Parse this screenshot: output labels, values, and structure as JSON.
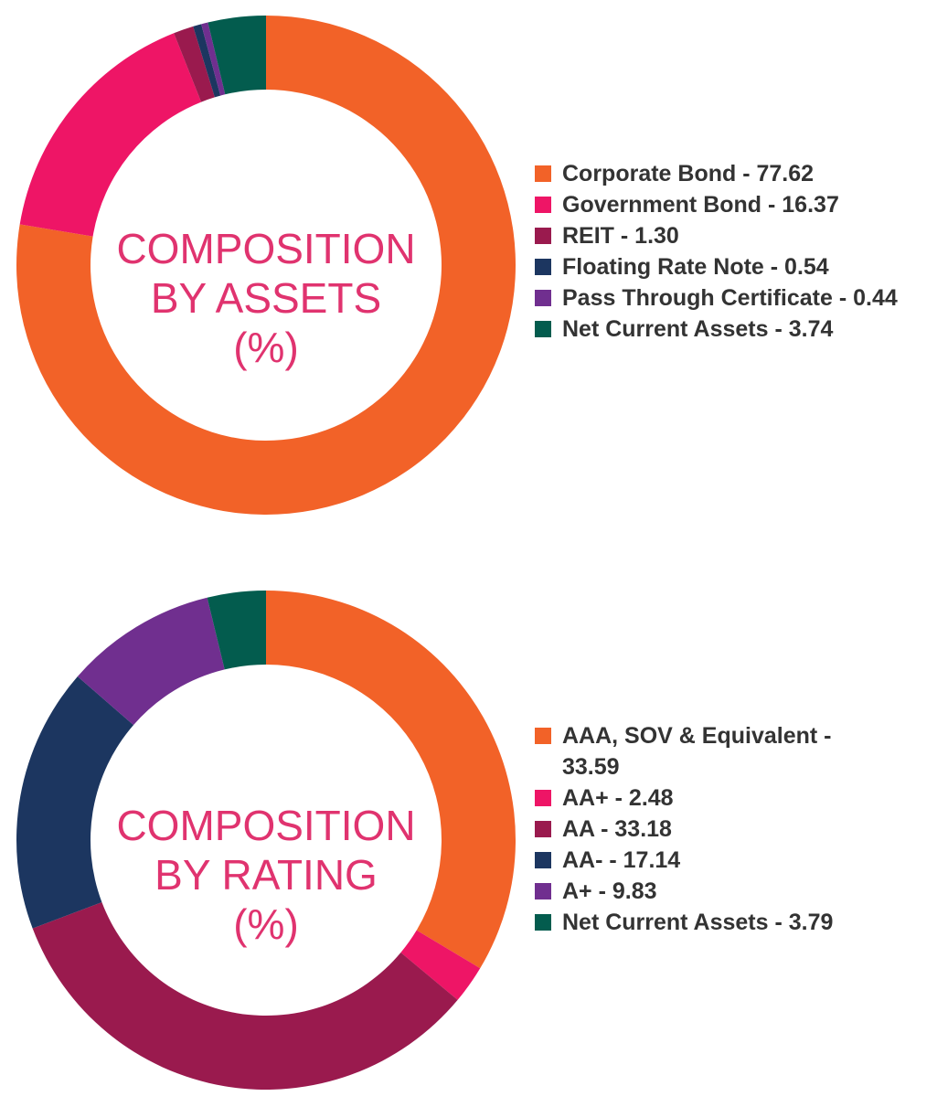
{
  "chart_data": [
    {
      "type": "pie",
      "title_lines": [
        "COMPOSITION",
        "BY ASSETS",
        "(%)"
      ],
      "categories": [
        "Corporate Bond",
        "Government Bond",
        "REIT",
        "Floating Rate Note",
        "Pass Through Certificate",
        "Net Current Assets"
      ],
      "values": [
        77.62,
        16.37,
        1.3,
        0.54,
        0.44,
        3.74
      ],
      "legend_labels": [
        "Corporate Bond - 77.62",
        "Government Bond - 16.37",
        "REIT - 1.30",
        "Floating Rate Note - 0.54",
        "Pass Through Certificate - 0.44",
        "Net Current Assets - 3.74"
      ],
      "colors": [
        "#f26228",
        "#ee1566",
        "#9a1a4e",
        "#1c3660",
        "#702f8f",
        "#035c4e"
      ],
      "legend": "right"
    },
    {
      "type": "pie",
      "title_lines": [
        "COMPOSITION",
        "BY RATING",
        "(%)"
      ],
      "categories": [
        "AAA, SOV & Equivalent",
        "AA+",
        "AA",
        "AA-",
        "A+",
        "Net Current Assets"
      ],
      "values": [
        33.59,
        2.48,
        33.18,
        17.14,
        9.83,
        3.79
      ],
      "legend_labels": [
        "AAA, SOV & Equivalent - 33.59",
        "AA+ - 2.48",
        "AA - 33.18",
        "AA- - 17.14",
        "A+ - 9.83",
        "Net Current Assets - 3.79"
      ],
      "colors": [
        "#f26228",
        "#ee1566",
        "#9a1a4e",
        "#1c3660",
        "#702f8f",
        "#035c4e"
      ],
      "legend": "right"
    }
  ]
}
